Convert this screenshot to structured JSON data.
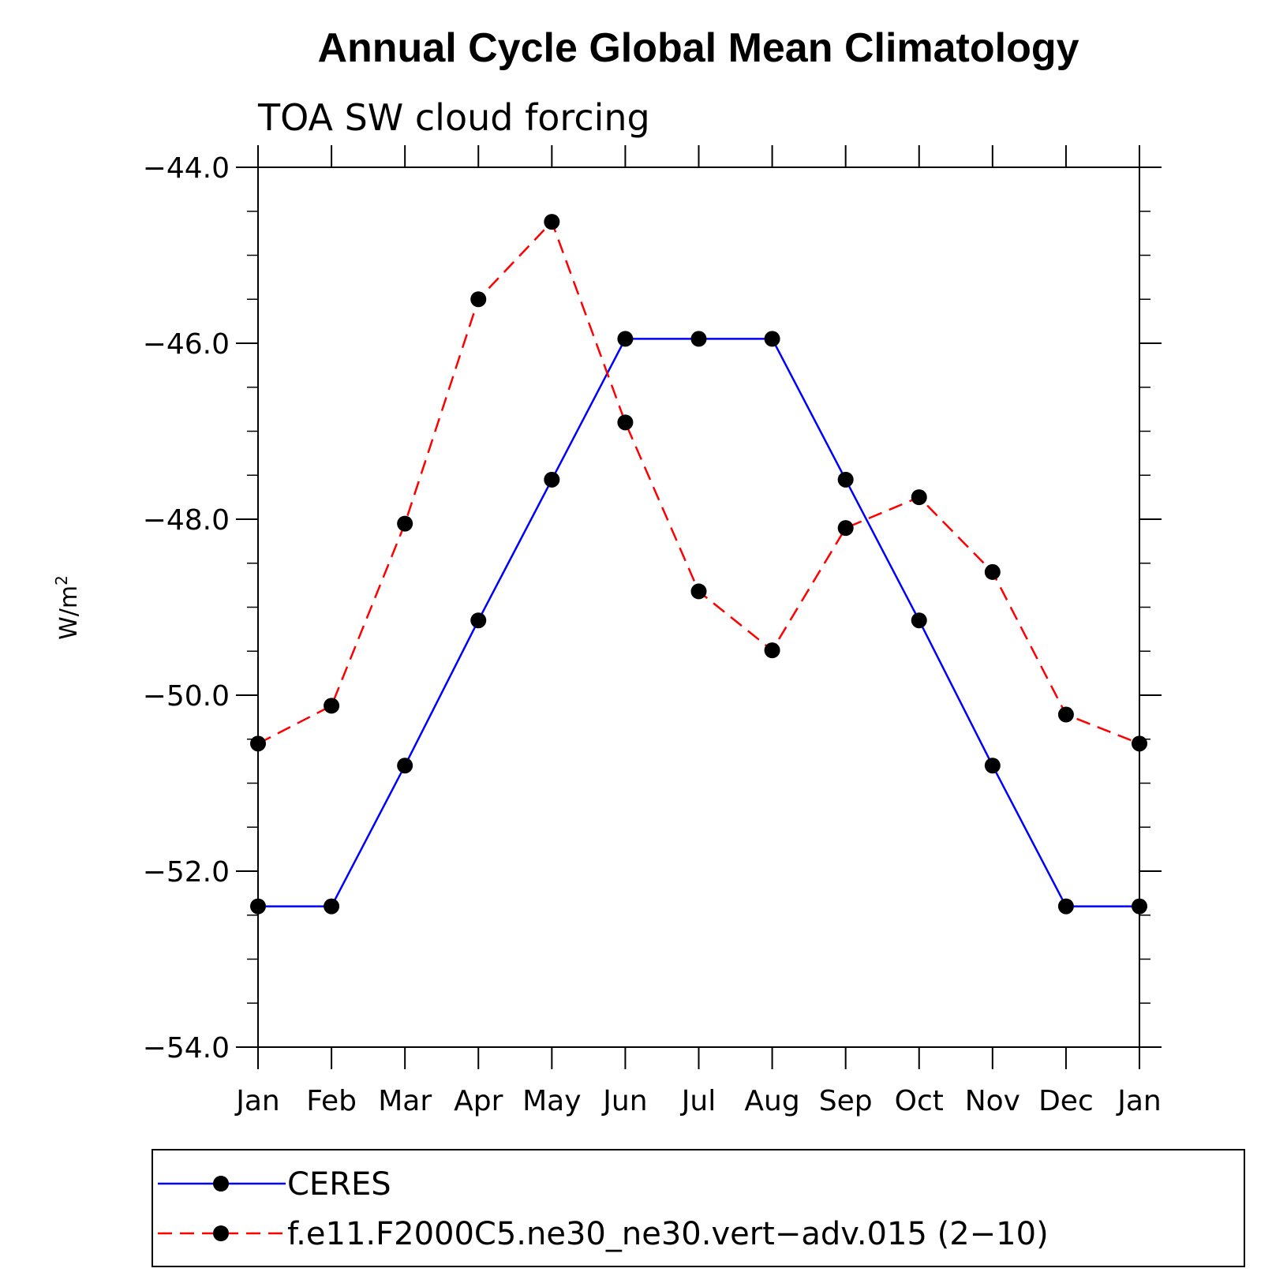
{
  "chart_data": {
    "type": "line",
    "title": "Annual Cycle Global Mean Climatology",
    "subtitle": "TOA SW cloud forcing",
    "ylabel": "W/m",
    "ylabel_sup": "2",
    "xlabel": "",
    "categories": [
      "Jan",
      "Feb",
      "Mar",
      "Apr",
      "May",
      "Jun",
      "Jul",
      "Aug",
      "Sep",
      "Oct",
      "Nov",
      "Dec",
      "Jan"
    ],
    "ylim": [
      -54.0,
      -44.0
    ],
    "yticks": [
      -44.0,
      -46.0,
      -48.0,
      -50.0,
      -52.0,
      -54.0
    ],
    "ytick_labels": [
      "−44.0",
      "−46.0",
      "−48.0",
      "−50.0",
      "−52.0",
      "−54.0"
    ],
    "grid": false,
    "legend_placement": "bottom",
    "series": [
      {
        "name": "CERES",
        "color": "#0000ff",
        "line_style": "solid",
        "marker": "filled-circle",
        "values": [
          -52.4,
          -52.4,
          -50.8,
          -49.15,
          -47.55,
          -45.95,
          -45.95,
          -45.95,
          -47.55,
          -49.15,
          -50.8,
          -52.4,
          -52.4
        ]
      },
      {
        "name": "f.e11.F2000C5.ne30_ne30.vert−adv.015 (2−10)",
        "color": "#ff0000",
        "line_style": "dashed",
        "marker": "filled-circle",
        "values": [
          -50.55,
          -50.12,
          -48.05,
          -45.5,
          -44.62,
          -46.9,
          -48.82,
          -49.49,
          -48.1,
          -47.75,
          -48.6,
          -50.22,
          -50.55
        ]
      }
    ]
  }
}
